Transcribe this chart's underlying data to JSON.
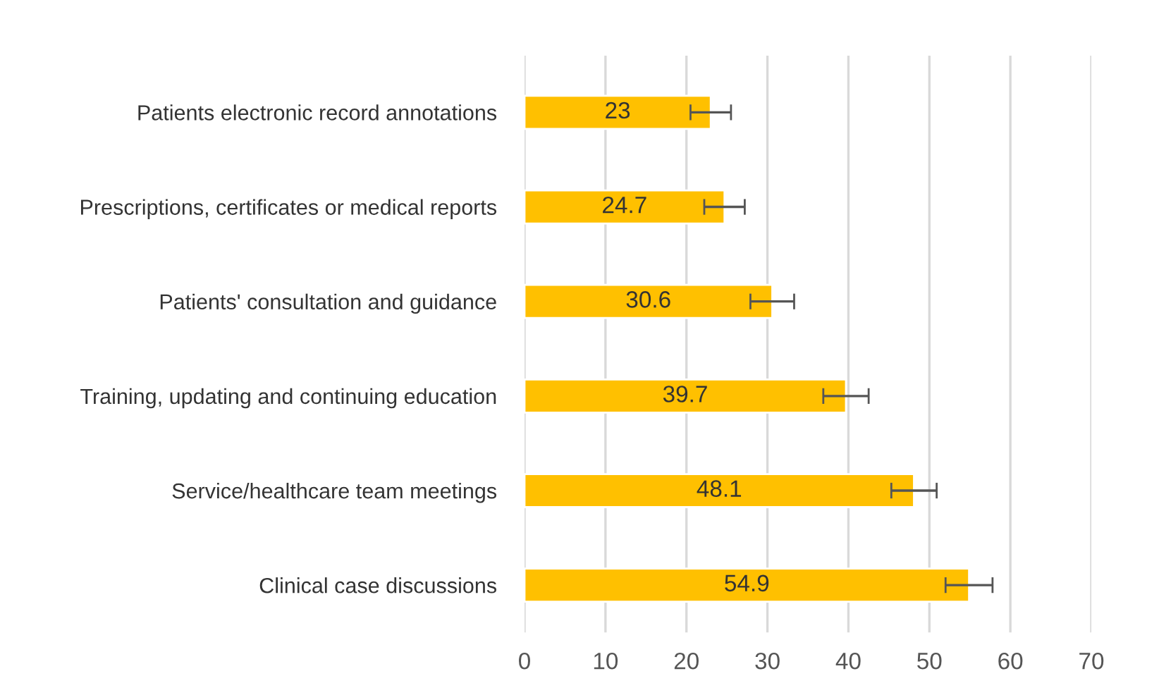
{
  "chart_data": {
    "type": "bar",
    "orientation": "horizontal",
    "categories": [
      "Patients electronic record annotations",
      "Prescriptions, certificates or medical reports",
      "Patients' consultation and guidance",
      "Training, updating and continuing education",
      "Service/healthcare team meetings",
      "Clinical case discussions"
    ],
    "values": [
      23,
      24.7,
      30.6,
      39.7,
      48.1,
      54.9
    ],
    "errors": [
      2.5,
      2.5,
      2.7,
      2.8,
      2.8,
      2.9
    ],
    "color": "#ffc000",
    "xlim": [
      0,
      70
    ],
    "xticks": [
      0,
      10,
      20,
      30,
      40,
      50,
      60,
      70
    ],
    "grid": "x",
    "data_labels": true
  }
}
